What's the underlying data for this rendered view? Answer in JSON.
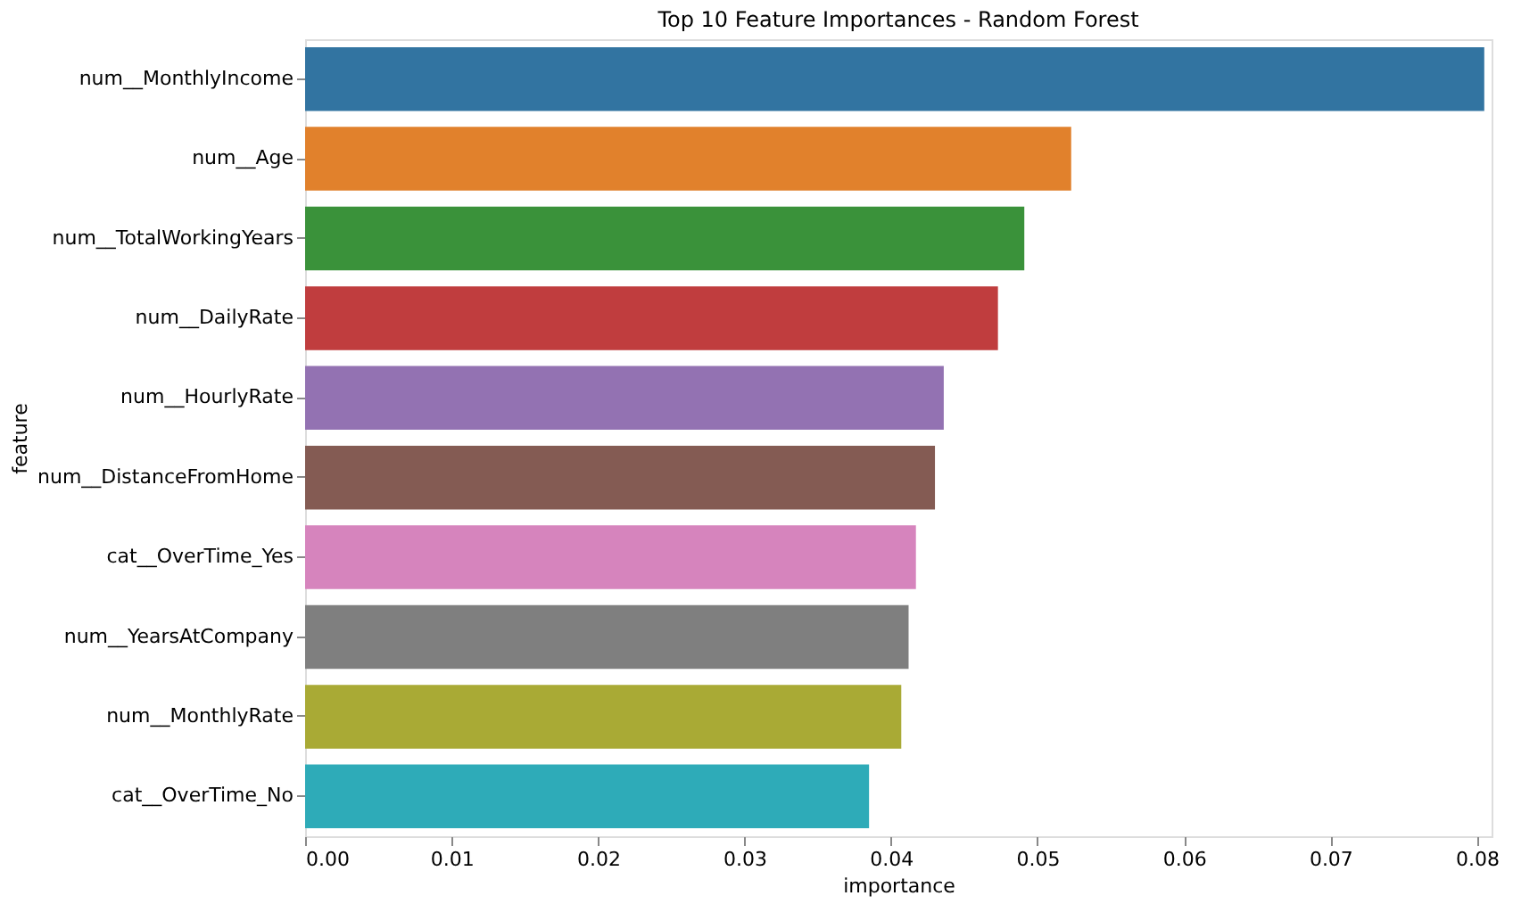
{
  "chart_data": {
    "type": "bar",
    "orientation": "horizontal",
    "title": "Top 10 Feature Importances - Random Forest",
    "xlabel": "importance",
    "ylabel": "feature",
    "categories": [
      "num__MonthlyIncome",
      "num__Age",
      "num__TotalWorkingYears",
      "num__DailyRate",
      "num__HourlyRate",
      "num__DistanceFromHome",
      "cat__OverTime_Yes",
      "num__YearsAtCompany",
      "num__MonthlyRate",
      "cat__OverTime_No"
    ],
    "values": [
      0.0805,
      0.0523,
      0.0491,
      0.0473,
      0.0436,
      0.043,
      0.0417,
      0.0412,
      0.0407,
      0.0385
    ],
    "colors": [
      "#3274a1",
      "#e1812c",
      "#3a923a",
      "#c03d3e",
      "#9372b2",
      "#845b53",
      "#d684bd",
      "#7f7f7f",
      "#a9aa35",
      "#2eabb8"
    ],
    "xlim": [
      0,
      0.081
    ],
    "xticks": [
      {
        "value": 0,
        "label": "0.00"
      },
      {
        "value": 0.01,
        "label": "0.01"
      },
      {
        "value": 0.02,
        "label": "0.02"
      },
      {
        "value": 0.03,
        "label": "0.03"
      },
      {
        "value": 0.04,
        "label": "0.04"
      },
      {
        "value": 0.05,
        "label": "0.05"
      },
      {
        "value": 0.06,
        "label": "0.06"
      },
      {
        "value": 0.07,
        "label": "0.07"
      },
      {
        "value": 0.08,
        "label": "0.08"
      }
    ],
    "grid": false
  }
}
